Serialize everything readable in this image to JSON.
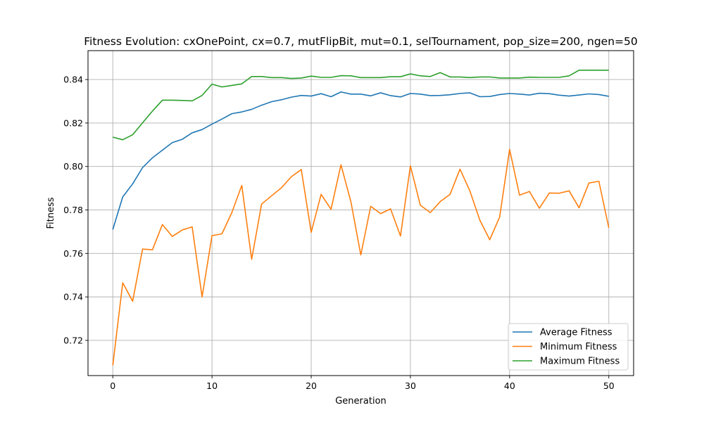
{
  "chart_data": {
    "type": "line",
    "title": "Fitness Evolution: cxOnePoint, cx=0.7, mutFlipBit, mut=0.1, selTournament, pop_size=200, ngen=50",
    "xlabel": "Generation",
    "ylabel": "Fitness",
    "xlim": [
      -2.5,
      52.5
    ],
    "ylim": [
      0.7038,
      0.8533
    ],
    "xticks": [
      0,
      10,
      20,
      30,
      40,
      50
    ],
    "yticks": [
      0.72,
      0.74,
      0.76,
      0.78,
      0.8,
      0.82,
      0.84
    ],
    "ytick_labels": [
      "0.72",
      "0.74",
      "0.76",
      "0.78",
      "0.80",
      "0.82",
      "0.84"
    ],
    "grid": true,
    "legend_position": "lower-right",
    "x": [
      0,
      1,
      2,
      3,
      4,
      5,
      6,
      7,
      8,
      9,
      10,
      11,
      12,
      13,
      14,
      15,
      16,
      17,
      18,
      19,
      20,
      21,
      22,
      23,
      24,
      25,
      26,
      27,
      28,
      29,
      30,
      31,
      32,
      33,
      34,
      35,
      36,
      37,
      38,
      39,
      40,
      41,
      42,
      43,
      44,
      45,
      46,
      47,
      48,
      49,
      50
    ],
    "series": [
      {
        "name": "Average Fitness",
        "color": "#1f77b4",
        "values": [
          0.771,
          0.786,
          0.792,
          0.7995,
          0.804,
          0.8075,
          0.811,
          0.8125,
          0.8155,
          0.817,
          0.8195,
          0.8218,
          0.8243,
          0.8251,
          0.8263,
          0.8282,
          0.8298,
          0.8307,
          0.8319,
          0.8327,
          0.8324,
          0.8335,
          0.8321,
          0.8343,
          0.8333,
          0.8333,
          0.8325,
          0.8339,
          0.8326,
          0.832,
          0.8336,
          0.8333,
          0.8326,
          0.8327,
          0.833,
          0.8336,
          0.8339,
          0.8321,
          0.8322,
          0.8331,
          0.8336,
          0.8333,
          0.8329,
          0.8337,
          0.8335,
          0.8328,
          0.8324,
          0.8329,
          0.8334,
          0.8331,
          0.8323
        ]
      },
      {
        "name": "Minimum Fitness",
        "color": "#ff7f0e",
        "values": [
          0.7085,
          0.7465,
          0.738,
          0.762,
          0.7617,
          0.7733,
          0.7678,
          0.7708,
          0.7722,
          0.74,
          0.7682,
          0.769,
          0.7788,
          0.7913,
          0.7573,
          0.7827,
          0.7865,
          0.7902,
          0.7953,
          0.7986,
          0.7697,
          0.7872,
          0.7803,
          0.8008,
          0.7838,
          0.7593,
          0.7817,
          0.7783,
          0.7805,
          0.768,
          0.8003,
          0.7822,
          0.7788,
          0.7838,
          0.7872,
          0.7988,
          0.7887,
          0.7753,
          0.7663,
          0.7768,
          0.8079,
          0.7868,
          0.7885,
          0.7808,
          0.7878,
          0.7877,
          0.7888,
          0.781,
          0.7924,
          0.7932,
          0.7718
        ]
      },
      {
        "name": "Maximum Fitness",
        "color": "#2ca02c",
        "values": [
          0.8135,
          0.8123,
          0.8146,
          0.8201,
          0.8255,
          0.8305,
          0.8305,
          0.8304,
          0.8302,
          0.8327,
          0.8379,
          0.8366,
          0.8373,
          0.838,
          0.8414,
          0.8414,
          0.8409,
          0.8409,
          0.8405,
          0.8407,
          0.8416,
          0.841,
          0.841,
          0.8418,
          0.8417,
          0.8409,
          0.8409,
          0.8409,
          0.8413,
          0.8413,
          0.8426,
          0.8417,
          0.8414,
          0.8432,
          0.8412,
          0.8412,
          0.8409,
          0.8412,
          0.8412,
          0.8407,
          0.8407,
          0.8407,
          0.8411,
          0.841,
          0.841,
          0.841,
          0.8417,
          0.8443,
          0.8443,
          0.8443,
          0.8443
        ]
      }
    ]
  }
}
